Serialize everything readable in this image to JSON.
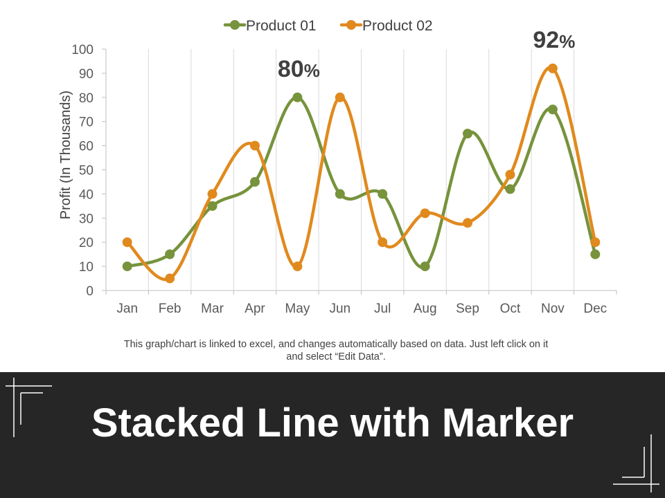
{
  "chart_data": {
    "type": "line",
    "smooth": true,
    "markers": true,
    "categories": [
      "Jan",
      "Feb",
      "Mar",
      "Apr",
      "May",
      "Jun",
      "Jul",
      "Aug",
      "Sep",
      "Oct",
      "Nov",
      "Dec"
    ],
    "series": [
      {
        "name": "Product 01",
        "color": "#77933c",
        "values": [
          10,
          15,
          35,
          45,
          80,
          40,
          40,
          10,
          65,
          42,
          75,
          15
        ]
      },
      {
        "name": "Product 02",
        "color": "#e08a1e",
        "values": [
          20,
          5,
          40,
          60,
          10,
          80,
          20,
          32,
          28,
          48,
          92,
          20
        ]
      }
    ],
    "ylabel": "Profit (In Thousands)",
    "xlabel": "",
    "ylim": [
      0,
      100
    ],
    "yticks": [
      "0",
      "10",
      "20",
      "30",
      "40",
      "50",
      "60",
      "70",
      "80",
      "90",
      "100"
    ],
    "grid": "vertical",
    "legend": "top",
    "annotations": [
      {
        "value": "80",
        "unit": "%",
        "category": "May"
      },
      {
        "value": "92",
        "unit": "%",
        "category": "Nov"
      }
    ]
  },
  "note": {
    "line1": "This graph/chart is linked to excel, and changes automatically based on data. Just left click on it",
    "line2": "and select “Edit Data”."
  },
  "title": "Stacked Line with Marker",
  "colors": {
    "banner": "#262626",
    "title": "#ffffff"
  }
}
